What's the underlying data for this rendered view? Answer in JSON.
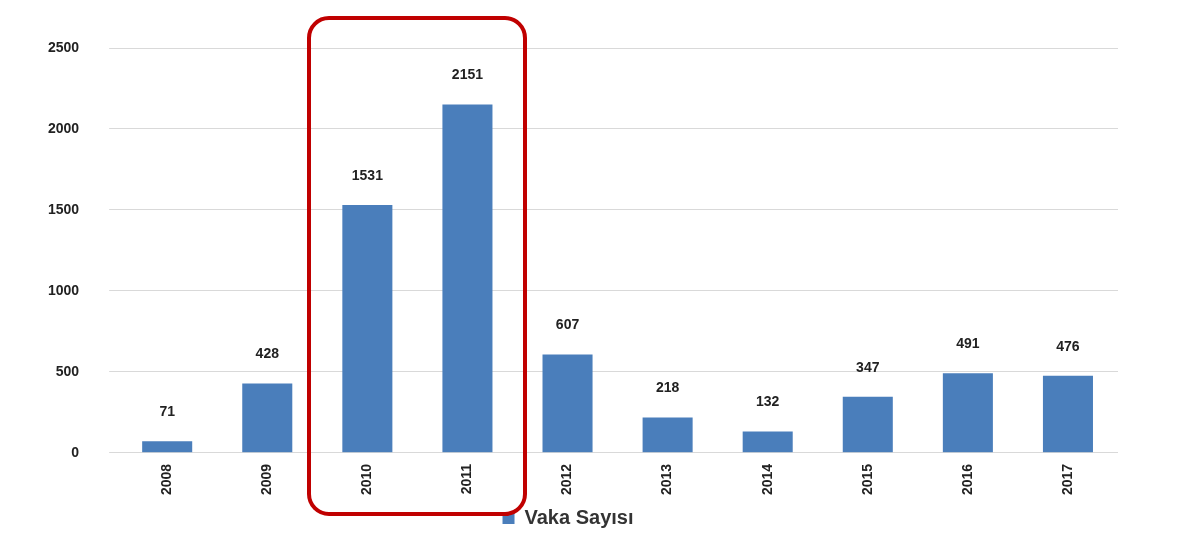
{
  "chart_data": {
    "type": "bar",
    "categories": [
      "2008",
      "2009",
      "2010",
      "2011",
      "2012",
      "2013",
      "2014",
      "2015",
      "2016",
      "2017"
    ],
    "series": [
      {
        "name": "Vaka Sayısı",
        "color": "#4a7ebb",
        "values": [
          71,
          428,
          1531,
          2151,
          607,
          218,
          132,
          347,
          491,
          476
        ]
      }
    ],
    "ylim": [
      0,
      2500
    ],
    "yticks": [
      0,
      500,
      1000,
      1500,
      2000,
      2500
    ],
    "grid": "y",
    "legend": "bottom",
    "data_labels": true
  }
}
